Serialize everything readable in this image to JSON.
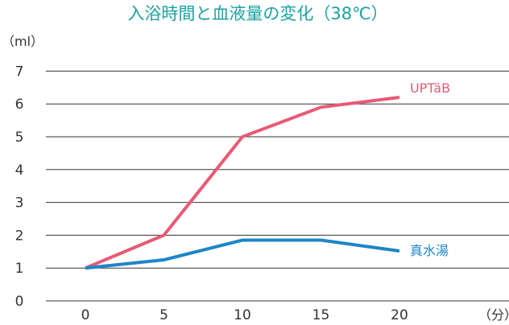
{
  "chart_data": {
    "type": "line",
    "title": "入浴時間と血液量の変化（38℃）",
    "ylabel": "（ml）",
    "xlabel": "（分）",
    "x": [
      0,
      5,
      10,
      15,
      20
    ],
    "ylim": [
      0,
      7
    ],
    "yticks": [
      0,
      1,
      2,
      3,
      4,
      5,
      6,
      7
    ],
    "grid": true,
    "series": [
      {
        "name": "UPTäB",
        "color": "#e85a75",
        "values": [
          1.0,
          2.0,
          5.0,
          5.9,
          6.2
        ]
      },
      {
        "name": "真水湯",
        "color": "#1d86c8",
        "values": [
          1.0,
          1.25,
          1.85,
          1.85,
          1.52
        ]
      }
    ]
  }
}
